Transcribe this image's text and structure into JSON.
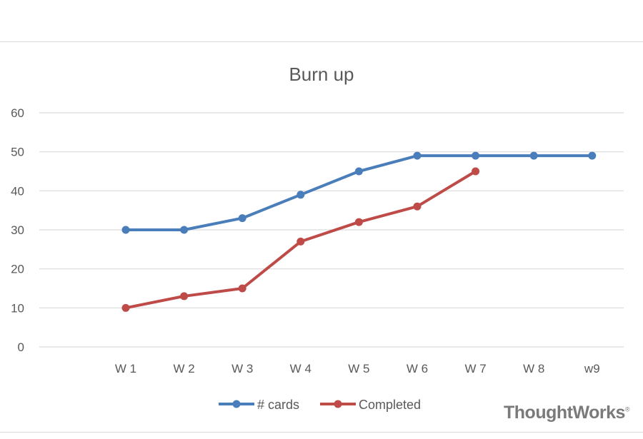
{
  "brand": {
    "name": "ThoughtWorks",
    "registered_mark": "®"
  },
  "chart_data": {
    "type": "line",
    "title": "Burn up",
    "xlabel": "",
    "ylabel": "",
    "categories": [
      "W 1",
      "W 2",
      "W 3",
      "W 4",
      "W 5",
      "W 6",
      "W 7",
      "W 8",
      "w9"
    ],
    "ylim": [
      0,
      60
    ],
    "yticks": [
      0,
      10,
      20,
      30,
      40,
      50,
      60
    ],
    "grid": true,
    "legend_position": "bottom",
    "series": [
      {
        "name": "# cards",
        "color": "#4a7ebb",
        "values": [
          30,
          30,
          33,
          39,
          45,
          49,
          49,
          49,
          49
        ]
      },
      {
        "name": "Completed",
        "color": "#be4b48",
        "values": [
          10,
          13,
          15,
          27,
          32,
          36,
          45,
          null,
          null
        ]
      }
    ]
  }
}
